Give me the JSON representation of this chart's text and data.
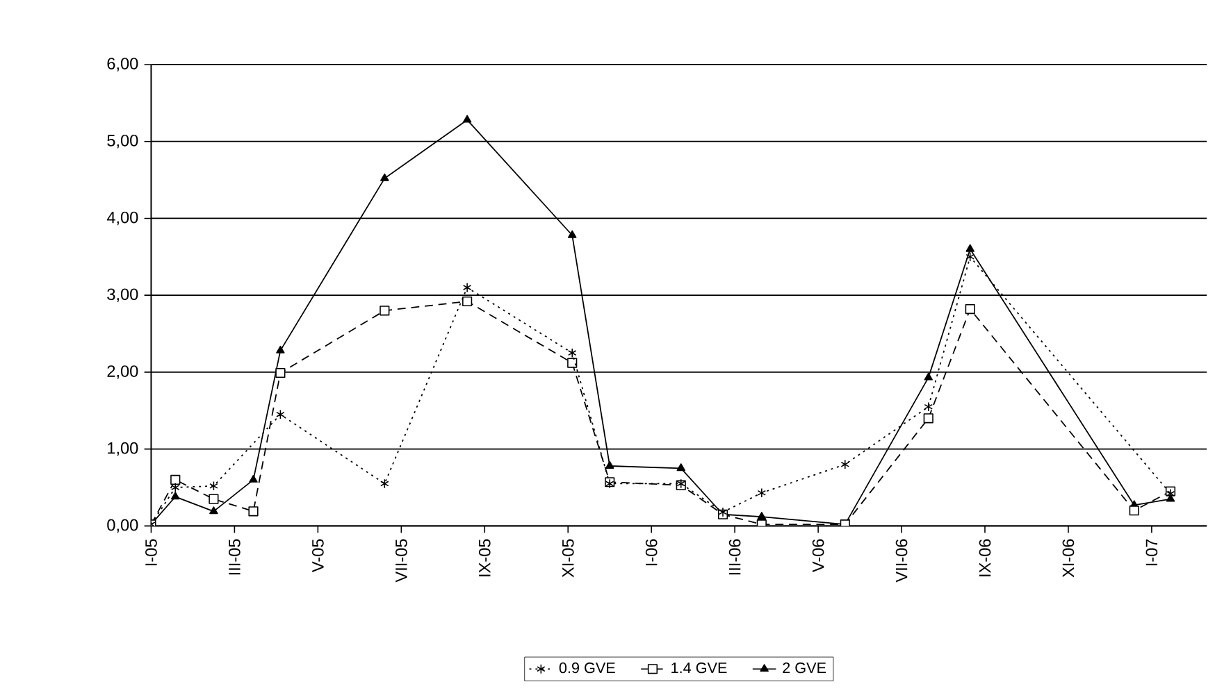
{
  "chart_data": {
    "type": "line",
    "legend": "bottom",
    "grid": "y",
    "x": [
      "2005-01-01",
      "2005-01-19",
      "2005-02-15",
      "2005-03-15",
      "2005-04-04",
      "2005-06-19",
      "2005-08-19",
      "2005-11-04",
      "2005-12-01",
      "2006-01-23",
      "2006-02-21",
      "2006-03-21",
      "2006-05-21",
      "2006-07-21",
      "2006-08-21",
      "2006-12-19",
      "2007-01-15"
    ],
    "series": [
      {
        "name": "0.9 GVE",
        "color": "#000000",
        "marker": "cross",
        "line_style": "dotted",
        "values": [
          0.02,
          0.5,
          0.52,
          null,
          1.45,
          0.55,
          3.1,
          2.25,
          0.55,
          0.55,
          0.18,
          0.43,
          0.8,
          1.55,
          3.5,
          null,
          0.42
        ]
      },
      {
        "name": "1.4 GVE",
        "color": "#000000",
        "marker": "square",
        "line_style": "dashed",
        "values": [
          0.02,
          0.6,
          0.35,
          0.19,
          1.99,
          2.8,
          2.92,
          2.12,
          0.57,
          0.53,
          0.15,
          0.02,
          0.02,
          1.4,
          2.82,
          0.2,
          0.45
        ]
      },
      {
        "name": "2 GVE",
        "color": "#000000",
        "marker": "triangle",
        "line_style": "solid",
        "values": [
          0.02,
          0.38,
          0.19,
          0.6,
          2.28,
          4.52,
          5.28,
          3.78,
          0.78,
          0.75,
          0.15,
          0.12,
          0.02,
          1.93,
          3.6,
          0.27,
          0.35
        ]
      }
    ],
    "xlim": [
      "2005-01-01",
      "2007-02-10"
    ],
    "xticks": [
      {
        "value": "2005-01",
        "label": "I-05"
      },
      {
        "value": "2005-03",
        "label": "III-05"
      },
      {
        "value": "2005-05",
        "label": "V-05"
      },
      {
        "value": "2005-07",
        "label": "VII-05"
      },
      {
        "value": "2005-09",
        "label": "IX-05"
      },
      {
        "value": "2005-11",
        "label": "XI-05"
      },
      {
        "value": "2006-01",
        "label": "I-06"
      },
      {
        "value": "2006-03",
        "label": "III-06"
      },
      {
        "value": "2006-05",
        "label": "V-06"
      },
      {
        "value": "2006-07",
        "label": "VII-06"
      },
      {
        "value": "2006-09",
        "label": "IX-06"
      },
      {
        "value": "2006-11",
        "label": "XI-06"
      },
      {
        "value": "2007-01",
        "label": "I-07"
      }
    ],
    "ylim": [
      0,
      6
    ],
    "yticks": [
      {
        "value": 0,
        "label": "0,00"
      },
      {
        "value": 1,
        "label": "1,00"
      },
      {
        "value": 2,
        "label": "2,00"
      },
      {
        "value": 3,
        "label": "3,00"
      },
      {
        "value": 4,
        "label": "4,00"
      },
      {
        "value": 5,
        "label": "5,00"
      },
      {
        "value": 6,
        "label": "6,00"
      }
    ]
  }
}
